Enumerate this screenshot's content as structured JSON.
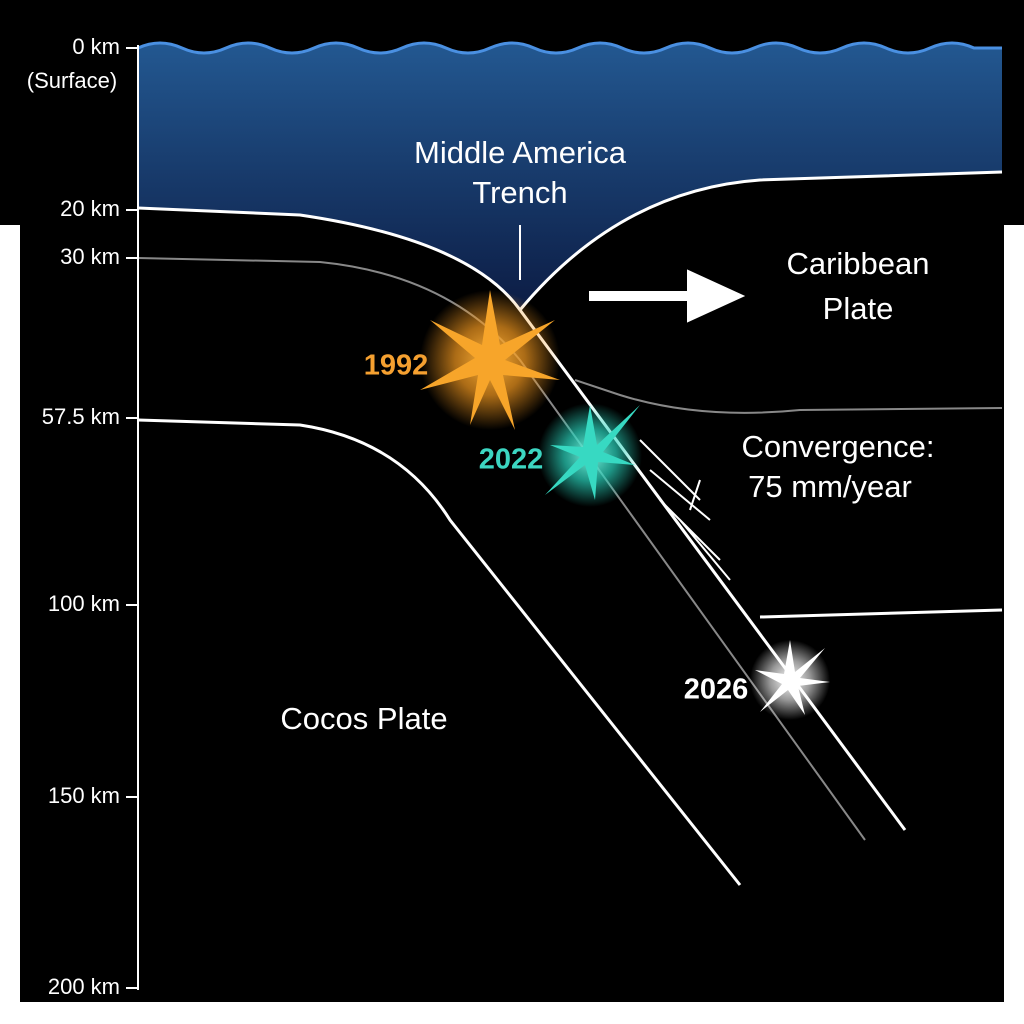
{
  "depth_axis": {
    "ticks": [
      "0 km",
      "20 km",
      "30 km",
      "57.5 km",
      "100 km",
      "150 km",
      "200 km"
    ],
    "surface_note": "(Surface)"
  },
  "trench": {
    "lines": [
      "Middle America",
      "Trench"
    ]
  },
  "caribbean_plate": {
    "lines": [
      "Caribbean",
      "Plate"
    ]
  },
  "convergence": {
    "lines": [
      "Convergence:",
      "75 mm/year"
    ]
  },
  "cocos_plate": {
    "label": "Cocos Plate"
  },
  "events": [
    "1992",
    "2022",
    "2026"
  ]
}
